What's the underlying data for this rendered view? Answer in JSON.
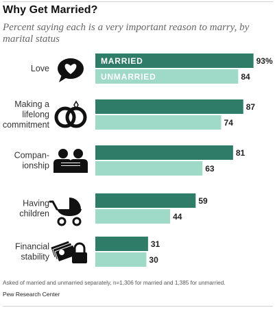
{
  "header": {
    "title": "Why Get Married?",
    "subtitle": "Percent saying each is a very important reason to marry, by marital status"
  },
  "footer": {
    "note": "Asked of married and unmarried separately, n=1,306 for married and 1,385 for unmarried.",
    "source": "Pew Research Center"
  },
  "colors": {
    "married": "#2f7d68",
    "unmarried": "#9fd9c7",
    "icon": "#111111"
  },
  "chart_data": {
    "type": "bar",
    "orientation": "horizontal",
    "categories": [
      [
        "Love"
      ],
      [
        "Making a",
        "lifelong",
        "commitment"
      ],
      [
        "Compan-",
        "ionship"
      ],
      [
        "Having",
        "children"
      ],
      [
        "Financial",
        "stability"
      ]
    ],
    "icons": [
      "heart-speech-icon",
      "rings-icon",
      "couple-icon",
      "stroller-icon",
      "money-lock-icon"
    ],
    "series": [
      {
        "name": "MARRIED",
        "values": [
          93,
          87,
          81,
          59,
          31
        ]
      },
      {
        "name": "UNMARRIED",
        "values": [
          84,
          74,
          63,
          44,
          30
        ]
      }
    ],
    "value_labels": [
      [
        "93%",
        "84"
      ],
      [
        "87",
        "74"
      ],
      [
        "81",
        "63"
      ],
      [
        "59",
        "44"
      ],
      [
        "31",
        "30"
      ]
    ],
    "legend": "inside-bars",
    "xlim": [
      0,
      100
    ],
    "grid": false
  }
}
